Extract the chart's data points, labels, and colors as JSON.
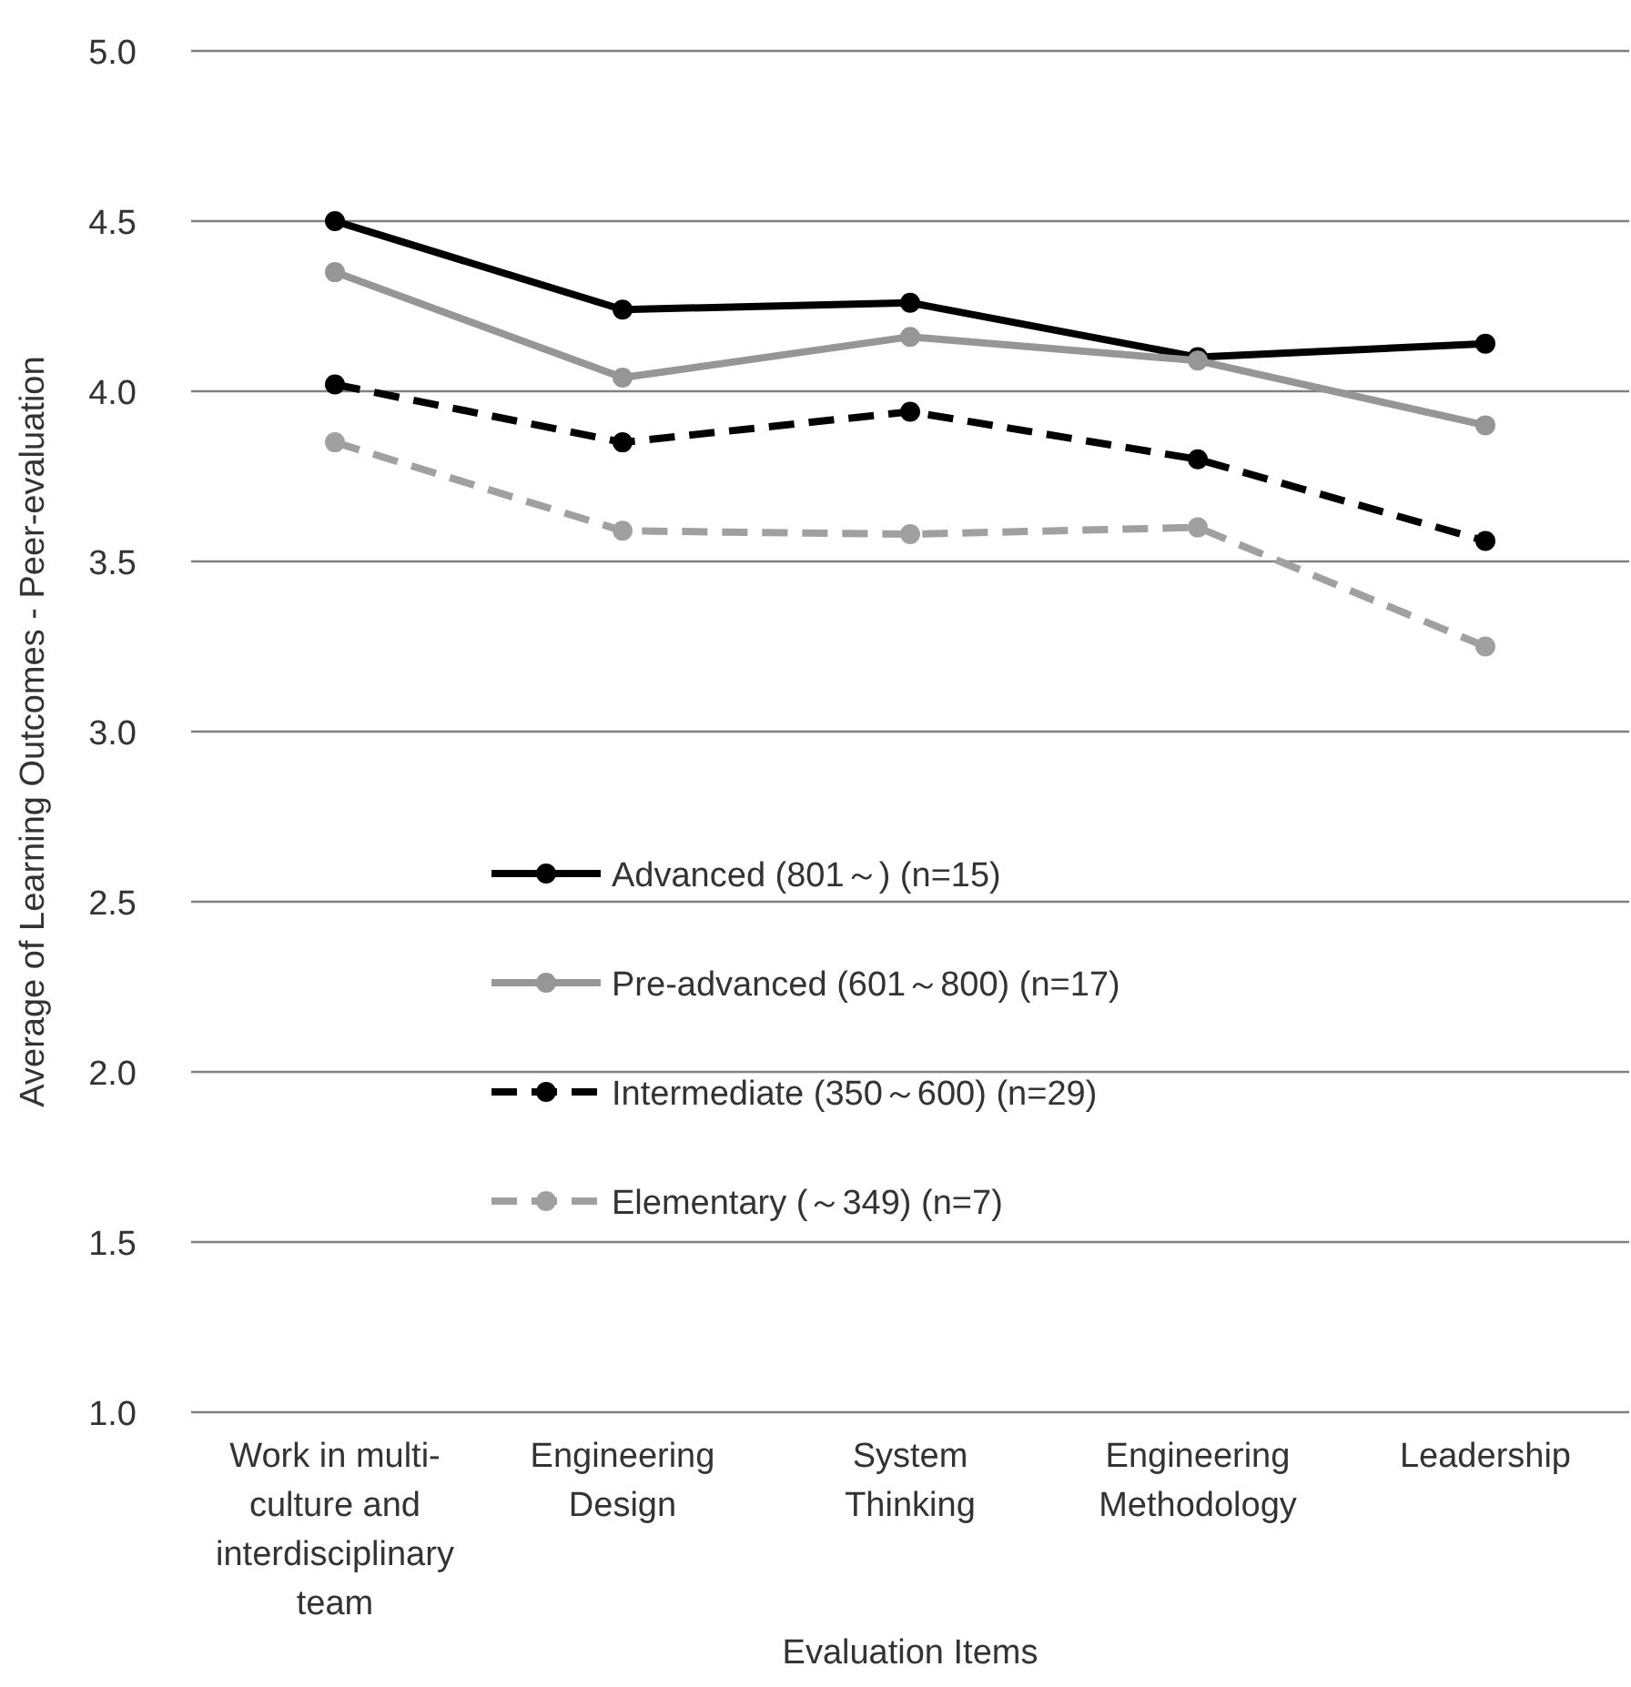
{
  "chart_data": {
    "type": "line",
    "xlabel": "Evaluation Items",
    "ylabel": "Average of Learning Outcomes - Peer-evaluation",
    "categories": [
      "Work in multi-culture and interdisciplinary team",
      "Engineering Design",
      "System Thinking",
      "Engineering Methodology",
      "Leadership"
    ],
    "series": [
      {
        "name": "Advanced (801～) (n=15)",
        "color": "#000000",
        "line_style": "solid",
        "values": [
          4.5,
          4.24,
          4.26,
          4.1,
          4.14
        ]
      },
      {
        "name": "Pre-advanced (601～800) (n=17)",
        "color": "#969696",
        "line_style": "solid",
        "values": [
          4.35,
          4.04,
          4.16,
          4.09,
          3.9
        ]
      },
      {
        "name": "Intermediate (350～600) (n=29)",
        "color": "#000000",
        "line_style": "dashed",
        "values": [
          4.02,
          3.85,
          3.94,
          3.8,
          3.56
        ]
      },
      {
        "name": "Elementary (～349) (n=7)",
        "color": "#a0a0a0",
        "line_style": "dashed",
        "values": [
          3.85,
          3.59,
          3.58,
          3.6,
          3.25
        ]
      }
    ],
    "ylim": [
      1.0,
      5.0
    ],
    "yticks": [
      {
        "value": 1.0,
        "label": "1.0"
      },
      {
        "value": 1.5,
        "label": "1.5"
      },
      {
        "value": 2.0,
        "label": "2.0"
      },
      {
        "value": 2.5,
        "label": "2.5"
      },
      {
        "value": 3.0,
        "label": "3.0"
      },
      {
        "value": 3.5,
        "label": "3.5"
      },
      {
        "value": 4.0,
        "label": "4.0"
      },
      {
        "value": 4.5,
        "label": "4.5"
      },
      {
        "value": 5.0,
        "label": "5.0"
      }
    ],
    "grid": "y",
    "legend": "bottom",
    "marker": "circle"
  }
}
